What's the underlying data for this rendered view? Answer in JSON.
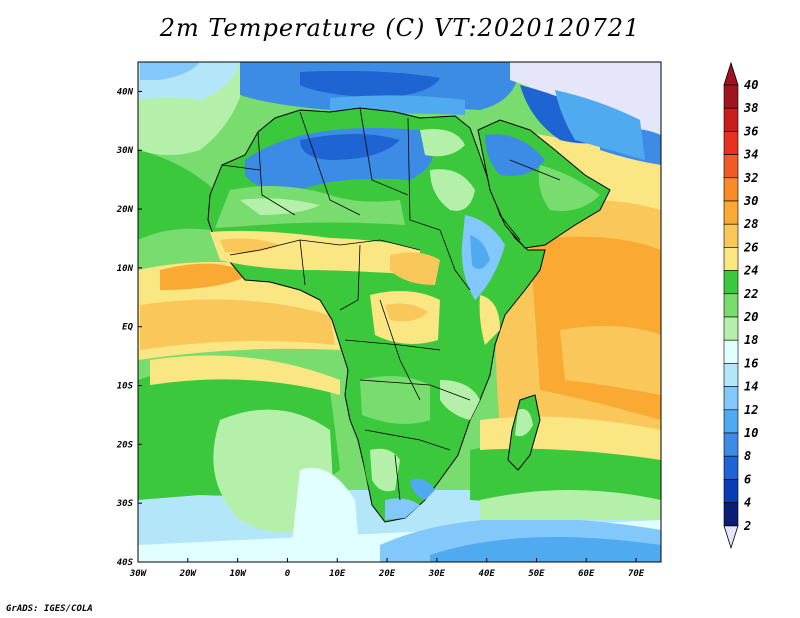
{
  "title": "2m Temperature (C) VT:2020120721",
  "credit": "GrADS: IGES/COLA",
  "map": {
    "lat_labels": [
      "40N",
      "30N",
      "20N",
      "10N",
      "EQ",
      "10S",
      "20S",
      "30S",
      "40S"
    ],
    "lat_values": [
      40,
      30,
      20,
      10,
      0,
      -10,
      -20,
      -30,
      -40
    ],
    "lon_labels": [
      "30W",
      "20W",
      "10W",
      "0",
      "10E",
      "20E",
      "30E",
      "40E",
      "50E",
      "60E",
      "70E"
    ],
    "lon_values": [
      -30,
      -20,
      -10,
      0,
      10,
      20,
      30,
      40,
      50,
      60,
      70
    ],
    "extent": {
      "lon_min": -30,
      "lon_max": 75,
      "lat_min": -40,
      "lat_max": 45
    }
  },
  "colorbar": {
    "labels": [
      "40",
      "38",
      "36",
      "34",
      "32",
      "30",
      "28",
      "26",
      "24",
      "22",
      "20",
      "18",
      "16",
      "14",
      "12",
      "10",
      "8",
      "6",
      "4",
      "2"
    ],
    "colors": {
      "above_40": "#a0141e",
      "38_40": "#a0141e",
      "36_38": "#c81e1e",
      "34_36": "#e6321e",
      "32_34": "#f05a28",
      "30_32": "#fa8c28",
      "28_30": "#faaa32",
      "26_28": "#fac85a",
      "24_26": "#fae682",
      "22_24": "#3cc83c",
      "20_22": "#78dc6e",
      "18_20": "#b4f0aa",
      "16_18": "#e1ffff",
      "14_16": "#b4e6fa",
      "12_14": "#82c8fa",
      "10_12": "#50aaf0",
      "8_10": "#3c8ce6",
      "6_8": "#1e64d2",
      "4_6": "#0a3cb4",
      "2_4": "#0a1e78",
      "below_2": "#e6e6fa"
    }
  }
}
